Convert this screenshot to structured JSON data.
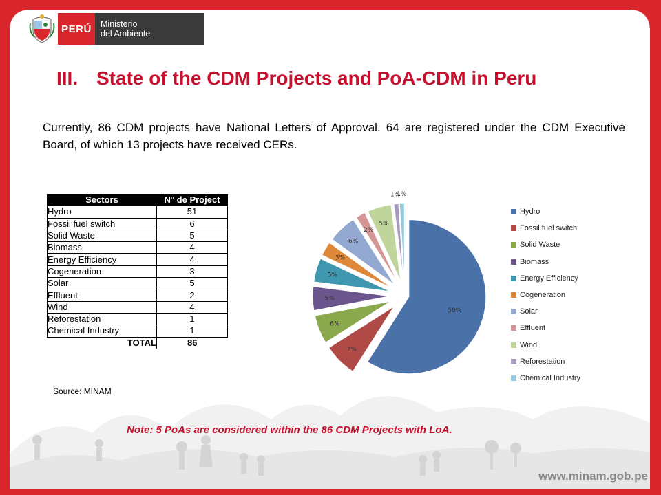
{
  "header": {
    "country_label": "PERÚ",
    "ministry_line1": "Ministerio",
    "ministry_line2": "del Ambiente"
  },
  "title": {
    "number": "III.",
    "text": "State of the CDM Projects and PoA-CDM in Peru"
  },
  "intro_text": "Currently, 86 CDM projects have National Letters of Approval. 64 are registered under the CDM Executive Board, of which 13 projects have received CERs.",
  "table": {
    "headers": [
      "Sectors",
      "N° de Project"
    ],
    "rows": [
      {
        "sector": "Hydro",
        "count": "51"
      },
      {
        "sector": "Fossil fuel switch",
        "count": "6"
      },
      {
        "sector": "Solid Waste",
        "count": "5"
      },
      {
        "sector": "Biomass",
        "count": "4"
      },
      {
        "sector": "Energy Efficiency",
        "count": "4"
      },
      {
        "sector": "Cogeneration",
        "count": "3"
      },
      {
        "sector": "Solar",
        "count": "5"
      },
      {
        "sector": "Effluent",
        "count": "2"
      },
      {
        "sector": "Wind",
        "count": "4"
      },
      {
        "sector": "Reforestation",
        "count": "1"
      },
      {
        "sector": "Chemical Industry",
        "count": "1"
      }
    ],
    "total_label": "TOTAL",
    "total_value": "86"
  },
  "source": "Source: MINAM",
  "note": "Note: 5 PoAs are considered within  the 86 CDM Projects with LoA.",
  "website": "www.minam.gob.pe",
  "colors": {
    "frame": "#d9262c",
    "title": "#c8102e"
  },
  "chart_data": {
    "type": "pie",
    "exploded": true,
    "legend_position": "right",
    "slices": [
      {
        "label": "Hydro",
        "value": 59,
        "data_label": "59%",
        "color": "#4a72a8"
      },
      {
        "label": "Fossil fuel switch",
        "value": 7,
        "data_label": "7%",
        "color": "#b04a46"
      },
      {
        "label": "Solid Waste",
        "value": 6,
        "data_label": "6%",
        "color": "#8aa84c"
      },
      {
        "label": "Biomass",
        "value": 5,
        "data_label": "5%",
        "color": "#6c558c"
      },
      {
        "label": "Energy Efficiency",
        "value": 5,
        "data_label": "5%",
        "color": "#3f98b0"
      },
      {
        "label": "Cogeneration",
        "value": 3,
        "data_label": "3%",
        "color": "#e0883a"
      },
      {
        "label": "Solar",
        "value": 6,
        "data_label": "6%",
        "color": "#93a9d2"
      },
      {
        "label": "Effluent",
        "value": 2,
        "data_label": "2%",
        "color": "#d49795"
      },
      {
        "label": "Wind",
        "value": 5,
        "data_label": "5%",
        "color": "#bfd59c"
      },
      {
        "label": "Reforestation",
        "value": 1,
        "data_label": "1%",
        "color": "#a899c0"
      },
      {
        "label": "Chemical Industry",
        "value": 1,
        "data_label": "1%",
        "color": "#94cadb"
      }
    ]
  }
}
